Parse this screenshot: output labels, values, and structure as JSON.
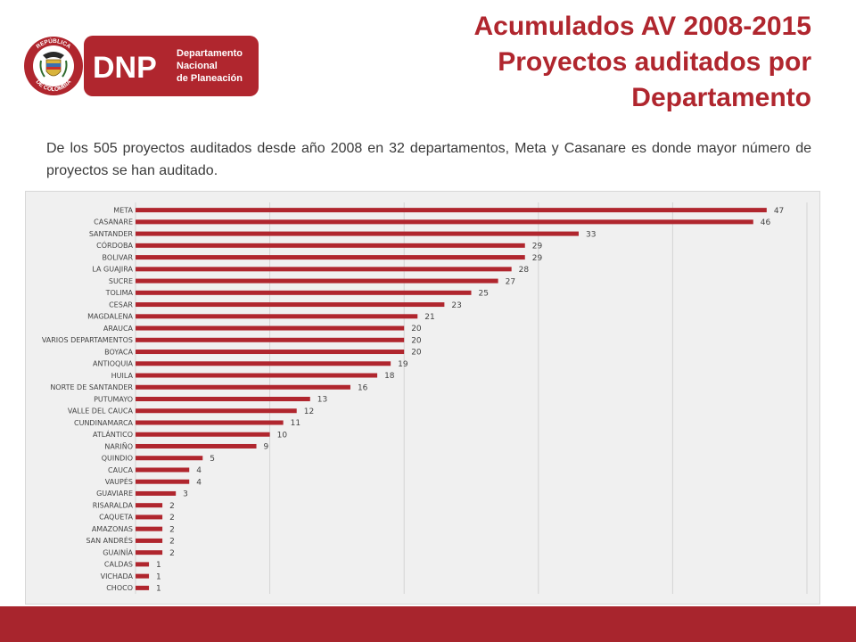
{
  "header": {
    "title_lines": [
      "Acumulados AV 2008-2015",
      "Proyectos auditados por",
      "Departamento"
    ],
    "logo": {
      "seal_text_top": "REPÚBLICA",
      "seal_text_bottom": "DE COLOMBIA",
      "brand": "DNP",
      "brand_lines": [
        "Departamento",
        "Nacional",
        "de Planeación"
      ],
      "color": "#b0262e"
    }
  },
  "intro": "De los 505 proyectos auditados desde año 2008 en 32 departamentos, Meta y Casanare es donde mayor número de proyectos se han auditado.",
  "colors": {
    "accent": "#b0262e",
    "bar": "#b0262e",
    "footer": "#a8252d"
  },
  "chart_data": {
    "type": "bar",
    "orientation": "horizontal",
    "categories": [
      "META",
      "CASANARE",
      "SANTANDER",
      "CÓRDOBA",
      "BOLIVAR",
      "LA GUAJIRA",
      "SUCRE",
      "TOLIMA",
      "CESAR",
      "MAGDALENA",
      "ARAUCA",
      "VARIOS DEPARTAMENTOS",
      "BOYACA",
      "ANTIOQUIA",
      "HUILA",
      "NORTE DE SANTANDER",
      "PUTUMAYO",
      "VALLE DEL CAUCA",
      "CUNDINAMARCA",
      "ATLÁNTICO",
      "NARIÑO",
      "QUINDIO",
      "CAUCA",
      "VAUPÉS",
      "GUAVIARE",
      "RISARALDA",
      "CAQUETA",
      "AMAZONAS",
      "SAN ANDRÉS",
      "GUAINÍA",
      "CALDAS",
      "VICHADA",
      "CHOCO"
    ],
    "values": [
      47,
      46,
      33,
      29,
      29,
      28,
      27,
      25,
      23,
      21,
      20,
      20,
      20,
      19,
      18,
      16,
      13,
      12,
      11,
      10,
      9,
      5,
      4,
      4,
      3,
      2,
      2,
      2,
      2,
      2,
      1,
      1,
      1
    ],
    "xlim": [
      0,
      50
    ],
    "grid": true,
    "data_labels": true
  }
}
